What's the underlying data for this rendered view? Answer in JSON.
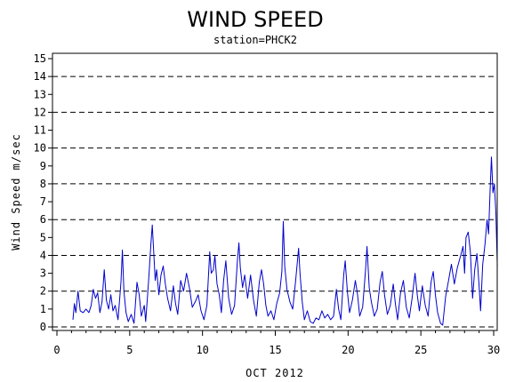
{
  "chart_data": {
    "type": "line",
    "title": "WIND SPEED",
    "subtitle": "station=PHCK2",
    "xlabel": "OCT 2012",
    "ylabel": "Wind Speed m/sec",
    "xlim": [
      0,
      30.3
    ],
    "ylim": [
      0,
      15.4
    ],
    "xticks": [
      0,
      5,
      10,
      15,
      20,
      25,
      30
    ],
    "yticks": [
      0,
      1,
      2,
      3,
      4,
      5,
      6,
      7,
      8,
      9,
      10,
      11,
      12,
      13,
      14,
      15
    ],
    "grid_y": [
      2,
      4,
      6,
      8,
      10,
      12,
      14
    ],
    "line_color": "#0000cc",
    "series": [
      {
        "values": [
          [
            1.1,
            0.4
          ],
          [
            1.2,
            1.3
          ],
          [
            1.3,
            0.8
          ],
          [
            1.45,
            2.0
          ],
          [
            1.6,
            0.9
          ],
          [
            1.8,
            0.8
          ],
          [
            2.0,
            1.0
          ],
          [
            2.2,
            0.8
          ],
          [
            2.35,
            1.2
          ],
          [
            2.5,
            2.1
          ],
          [
            2.65,
            1.6
          ],
          [
            2.8,
            1.9
          ],
          [
            2.95,
            0.8
          ],
          [
            3.1,
            1.4
          ],
          [
            3.25,
            3.2
          ],
          [
            3.4,
            1.5
          ],
          [
            3.55,
            1.0
          ],
          [
            3.7,
            1.8
          ],
          [
            3.85,
            0.9
          ],
          [
            4.0,
            1.2
          ],
          [
            4.2,
            0.4
          ],
          [
            4.4,
            2.5
          ],
          [
            4.5,
            4.3
          ],
          [
            4.6,
            2.0
          ],
          [
            4.75,
            0.8
          ],
          [
            4.9,
            0.3
          ],
          [
            5.1,
            0.7
          ],
          [
            5.3,
            0.2
          ],
          [
            5.5,
            2.5
          ],
          [
            5.65,
            1.8
          ],
          [
            5.8,
            0.6
          ],
          [
            6.0,
            1.2
          ],
          [
            6.1,
            0.3
          ],
          [
            6.3,
            2.6
          ],
          [
            6.45,
            4.6
          ],
          [
            6.55,
            5.7
          ],
          [
            6.65,
            4.2
          ],
          [
            6.75,
            2.6
          ],
          [
            6.85,
            3.2
          ],
          [
            7.0,
            1.8
          ],
          [
            7.15,
            2.9
          ],
          [
            7.3,
            3.4
          ],
          [
            7.45,
            2.4
          ],
          [
            7.6,
            1.6
          ],
          [
            7.8,
            0.9
          ],
          [
            8.0,
            2.3
          ],
          [
            8.15,
            1.3
          ],
          [
            8.3,
            0.7
          ],
          [
            8.5,
            2.6
          ],
          [
            8.7,
            2.0
          ],
          [
            8.9,
            3.0
          ],
          [
            9.1,
            2.2
          ],
          [
            9.3,
            1.1
          ],
          [
            9.5,
            1.4
          ],
          [
            9.7,
            1.8
          ],
          [
            9.9,
            0.9
          ],
          [
            10.1,
            0.4
          ],
          [
            10.3,
            1.2
          ],
          [
            10.5,
            4.2
          ],
          [
            10.6,
            3.0
          ],
          [
            10.75,
            3.2
          ],
          [
            10.85,
            4.0
          ],
          [
            11.0,
            2.4
          ],
          [
            11.15,
            1.8
          ],
          [
            11.3,
            0.8
          ],
          [
            11.45,
            2.6
          ],
          [
            11.6,
            3.7
          ],
          [
            11.8,
            1.6
          ],
          [
            12.0,
            0.7
          ],
          [
            12.2,
            1.2
          ],
          [
            12.4,
            3.7
          ],
          [
            12.5,
            4.7
          ],
          [
            12.6,
            3.3
          ],
          [
            12.75,
            2.2
          ],
          [
            12.9,
            2.9
          ],
          [
            13.1,
            1.6
          ],
          [
            13.3,
            2.9
          ],
          [
            13.5,
            1.5
          ],
          [
            13.7,
            0.6
          ],
          [
            13.9,
            2.5
          ],
          [
            14.05,
            3.2
          ],
          [
            14.2,
            2.4
          ],
          [
            14.35,
            1.2
          ],
          [
            14.5,
            0.6
          ],
          [
            14.7,
            0.9
          ],
          [
            14.9,
            0.4
          ],
          [
            15.1,
            1.3
          ],
          [
            15.3,
            1.9
          ],
          [
            15.45,
            3.1
          ],
          [
            15.55,
            5.9
          ],
          [
            15.65,
            3.4
          ],
          [
            15.8,
            2.1
          ],
          [
            16.0,
            1.4
          ],
          [
            16.2,
            1.0
          ],
          [
            16.4,
            2.6
          ],
          [
            16.6,
            4.4
          ],
          [
            16.7,
            3.0
          ],
          [
            16.85,
            1.4
          ],
          [
            17.0,
            0.4
          ],
          [
            17.2,
            0.9
          ],
          [
            17.4,
            0.3
          ],
          [
            17.6,
            0.2
          ],
          [
            17.8,
            0.5
          ],
          [
            18.0,
            0.4
          ],
          [
            18.2,
            0.9
          ],
          [
            18.4,
            0.5
          ],
          [
            18.6,
            0.7
          ],
          [
            18.8,
            0.4
          ],
          [
            19.0,
            0.6
          ],
          [
            19.2,
            2.1
          ],
          [
            19.35,
            1.0
          ],
          [
            19.5,
            0.4
          ],
          [
            19.7,
            2.9
          ],
          [
            19.8,
            3.7
          ],
          [
            19.95,
            2.0
          ],
          [
            20.1,
            0.8
          ],
          [
            20.3,
            1.5
          ],
          [
            20.5,
            2.6
          ],
          [
            20.65,
            1.8
          ],
          [
            20.8,
            0.6
          ],
          [
            21.0,
            1.1
          ],
          [
            21.2,
            3.2
          ],
          [
            21.3,
            4.5
          ],
          [
            21.45,
            2.2
          ],
          [
            21.6,
            1.4
          ],
          [
            21.8,
            0.6
          ],
          [
            22.0,
            1.0
          ],
          [
            22.2,
            2.5
          ],
          [
            22.35,
            3.1
          ],
          [
            22.5,
            1.8
          ],
          [
            22.7,
            0.7
          ],
          [
            22.9,
            1.2
          ],
          [
            23.1,
            2.4
          ],
          [
            23.25,
            1.3
          ],
          [
            23.4,
            0.4
          ],
          [
            23.6,
            1.9
          ],
          [
            23.8,
            2.6
          ],
          [
            24.0,
            1.1
          ],
          [
            24.2,
            0.5
          ],
          [
            24.4,
            1.6
          ],
          [
            24.6,
            3.0
          ],
          [
            24.75,
            1.8
          ],
          [
            24.9,
            0.9
          ],
          [
            25.1,
            2.3
          ],
          [
            25.3,
            1.2
          ],
          [
            25.5,
            0.6
          ],
          [
            25.7,
            2.5
          ],
          [
            25.85,
            3.1
          ],
          [
            26.0,
            1.8
          ],
          [
            26.15,
            0.8
          ],
          [
            26.35,
            0.2
          ],
          [
            26.5,
            0.1
          ],
          [
            26.7,
            1.7
          ],
          [
            26.9,
            2.6
          ],
          [
            27.1,
            3.5
          ],
          [
            27.3,
            2.4
          ],
          [
            27.5,
            3.3
          ],
          [
            27.7,
            3.9
          ],
          [
            27.9,
            4.5
          ],
          [
            28.0,
            3.0
          ],
          [
            28.1,
            5.0
          ],
          [
            28.25,
            5.3
          ],
          [
            28.4,
            4.2
          ],
          [
            28.55,
            1.6
          ],
          [
            28.7,
            3.2
          ],
          [
            28.85,
            4.1
          ],
          [
            29.0,
            2.3
          ],
          [
            29.1,
            0.9
          ],
          [
            29.25,
            3.5
          ],
          [
            29.4,
            4.6
          ],
          [
            29.55,
            6.0
          ],
          [
            29.65,
            5.2
          ],
          [
            29.75,
            7.5
          ],
          [
            29.85,
            9.5
          ],
          [
            29.95,
            7.5
          ],
          [
            30.05,
            8.0
          ],
          [
            30.15,
            6.4
          ],
          [
            30.25,
            3.4
          ]
        ]
      }
    ]
  }
}
